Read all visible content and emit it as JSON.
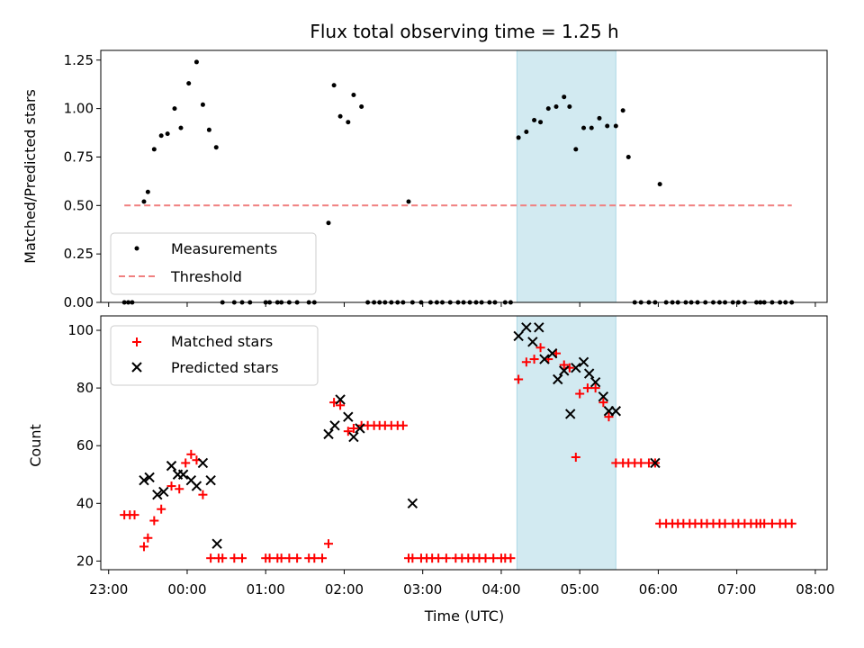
{
  "chart_data": {
    "title": "Flux total observing time = 1.25 h",
    "xlabel": "Time (UTC)",
    "x_axis": {
      "unit": "hours relative to 00:00 UTC",
      "range": [
        -1.1,
        8.15
      ],
      "ticks": [
        {
          "value": -1,
          "label": "23:00"
        },
        {
          "value": 0,
          "label": "00:00"
        },
        {
          "value": 1,
          "label": "01:00"
        },
        {
          "value": 2,
          "label": "02:00"
        },
        {
          "value": 3,
          "label": "03:00"
        },
        {
          "value": 4,
          "label": "04:00"
        },
        {
          "value": 5,
          "label": "05:00"
        },
        {
          "value": 6,
          "label": "06:00"
        },
        {
          "value": 7,
          "label": "07:00"
        },
        {
          "value": 8,
          "label": "08:00"
        }
      ]
    },
    "highlight_span": [
      4.2,
      5.46
    ],
    "highlight_color": "#add8e6",
    "top_panel": {
      "type": "scatter",
      "ylabel": "Matched/Predicted stars",
      "ylim": [
        0,
        1.3
      ],
      "yticks": [
        "0.00",
        "0.25",
        "0.50",
        "0.75",
        "1.00",
        "1.25"
      ],
      "ytick_values": [
        0,
        0.25,
        0.5,
        0.75,
        1.0,
        1.25
      ],
      "legend_position": "lower-left",
      "series": [
        {
          "name": "Measurements",
          "marker": "dot",
          "color": "#000000",
          "x": [
            -0.8,
            -0.75,
            -0.7,
            -0.55,
            -0.5,
            -0.42,
            -0.33,
            -0.25,
            -0.16,
            -0.08,
            0.02,
            0.12,
            0.2,
            0.28,
            0.37,
            0.45,
            0.6,
            0.7,
            0.8,
            1.0,
            1.05,
            1.15,
            1.2,
            1.3,
            1.4,
            1.55,
            1.62,
            1.8,
            1.87,
            1.95,
            2.05,
            2.12,
            2.22,
            2.3,
            2.38,
            2.45,
            2.52,
            2.6,
            2.68,
            2.75,
            2.82,
            2.87,
            2.98,
            3.1,
            3.18,
            3.25,
            3.35,
            3.45,
            3.52,
            3.6,
            3.68,
            3.75,
            3.85,
            3.92,
            4.05,
            4.12,
            4.22,
            4.32,
            4.42,
            4.5,
            4.6,
            4.7,
            4.8,
            4.87,
            4.95,
            5.05,
            5.15,
            5.25,
            5.35,
            5.46,
            5.55,
            5.62,
            5.7,
            5.78,
            5.88,
            5.96,
            6.02,
            6.1,
            6.18,
            6.25,
            6.35,
            6.42,
            6.5,
            6.6,
            6.7,
            6.78,
            6.85,
            6.95,
            7.02,
            7.1,
            7.25,
            7.3,
            7.35,
            7.45,
            7.55,
            7.62,
            7.7
          ],
          "y": [
            0,
            0,
            0,
            0.52,
            0.57,
            0.79,
            0.86,
            0.87,
            1.0,
            0.9,
            1.13,
            1.24,
            1.02,
            0.89,
            0.8,
            0,
            0,
            0,
            0,
            0,
            0,
            0,
            0,
            0,
            0,
            0,
            0,
            0.41,
            1.12,
            0.96,
            0.93,
            1.07,
            1.01,
            0,
            0,
            0,
            0,
            0,
            0,
            0,
            0.52,
            0,
            0,
            0,
            0,
            0,
            0,
            0,
            0,
            0,
            0,
            0,
            0,
            0,
            0,
            0,
            0.85,
            0.88,
            0.94,
            0.93,
            1.0,
            1.01,
            1.06,
            1.01,
            0.79,
            0.9,
            0.9,
            0.95,
            0.91,
            0.91,
            0.99,
            0.75,
            0,
            0,
            0,
            0,
            0.61,
            0,
            0,
            0,
            0,
            0,
            0,
            0,
            0,
            0,
            0,
            0,
            0,
            0,
            0,
            0,
            0,
            0,
            0,
            0,
            0
          ]
        },
        {
          "name": "Threshold",
          "style": "dashed",
          "color": "#f08080",
          "x": [
            -0.8,
            7.7
          ],
          "y": [
            0.5,
            0.5
          ]
        }
      ]
    },
    "bottom_panel": {
      "type": "scatter",
      "ylabel": "Count",
      "ylim": [
        17,
        105
      ],
      "yticks": [
        "20",
        "40",
        "60",
        "80",
        "100"
      ],
      "ytick_values": [
        20,
        40,
        60,
        80,
        100
      ],
      "legend_position": "top-left",
      "series": [
        {
          "name": "Matched stars",
          "marker": "plus",
          "color": "#ff0000",
          "x": [
            -0.8,
            -0.73,
            -0.67,
            -0.55,
            -0.5,
            -0.42,
            -0.33,
            -0.2,
            -0.1,
            -0.02,
            0.05,
            0.12,
            0.2,
            0.3,
            0.4,
            0.45,
            0.6,
            0.7,
            1.0,
            1.05,
            1.15,
            1.2,
            1.3,
            1.4,
            1.55,
            1.62,
            1.72,
            1.8,
            1.87,
            1.95,
            2.05,
            2.12,
            2.22,
            2.3,
            2.38,
            2.45,
            2.52,
            2.6,
            2.68,
            2.75,
            2.82,
            2.87,
            2.98,
            3.05,
            3.12,
            3.2,
            3.3,
            3.42,
            3.5,
            3.58,
            3.65,
            3.72,
            3.8,
            3.9,
            4.0,
            4.05,
            4.12,
            4.22,
            4.32,
            4.42,
            4.5,
            4.6,
            4.7,
            4.8,
            4.87,
            4.95,
            5.0,
            5.1,
            5.2,
            5.3,
            5.37,
            5.46,
            5.55,
            5.62,
            5.7,
            5.78,
            5.88,
            5.96,
            6.02,
            6.1,
            6.18,
            6.25,
            6.32,
            6.4,
            6.47,
            6.55,
            6.62,
            6.7,
            6.78,
            6.85,
            6.95,
            7.02,
            7.1,
            7.18,
            7.25,
            7.3,
            7.35,
            7.45,
            7.55,
            7.62,
            7.7
          ],
          "y": [
            36,
            36,
            36,
            25,
            28,
            34,
            38,
            46,
            45,
            54,
            57,
            55,
            43,
            21,
            21,
            21,
            21,
            21,
            21,
            21,
            21,
            21,
            21,
            21,
            21,
            21,
            21,
            26,
            75,
            74,
            65,
            66,
            67,
            67,
            67,
            67,
            67,
            67,
            67,
            67,
            21,
            21,
            21,
            21,
            21,
            21,
            21,
            21,
            21,
            21,
            21,
            21,
            21,
            21,
            21,
            21,
            21,
            83,
            89,
            90,
            94,
            90,
            92,
            88,
            87,
            56,
            78,
            80,
            80,
            75,
            70,
            54,
            54,
            54,
            54,
            54,
            54,
            54,
            33,
            33,
            33,
            33,
            33,
            33,
            33,
            33,
            33,
            33,
            33,
            33,
            33,
            33,
            33,
            33,
            33,
            33,
            33,
            33,
            33,
            33,
            33
          ]
        },
        {
          "name": "Predicted stars",
          "marker": "x",
          "color": "#000000",
          "x": [
            -0.55,
            -0.48,
            -0.38,
            -0.3,
            -0.2,
            -0.12,
            -0.05,
            0.05,
            0.12,
            0.2,
            0.3,
            0.38,
            1.8,
            1.88,
            1.95,
            2.05,
            2.12,
            2.2,
            2.87,
            4.22,
            4.32,
            4.4,
            4.48,
            4.55,
            4.65,
            4.72,
            4.8,
            4.88,
            4.95,
            5.05,
            5.12,
            5.2,
            5.3,
            5.37,
            5.46,
            5.96
          ],
          "y": [
            48,
            49,
            43,
            44,
            53,
            50,
            50,
            48,
            46,
            54,
            48,
            26,
            64,
            67,
            76,
            70,
            63,
            66,
            40,
            98,
            101,
            96,
            101,
            90,
            92,
            83,
            86,
            71,
            87,
            89,
            85,
            82,
            77,
            72,
            72,
            54
          ]
        }
      ]
    }
  }
}
